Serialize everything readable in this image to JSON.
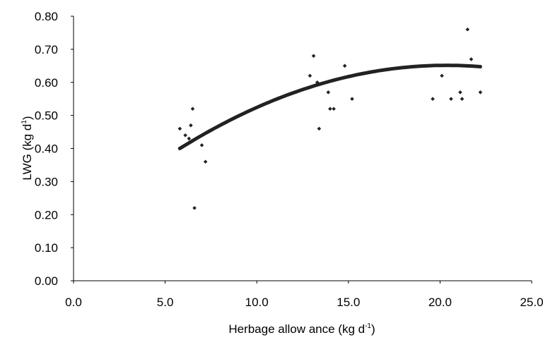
{
  "chart_data": {
    "type": "scatter",
    "xlabel": "Herbage allow ance (kg d",
    "xlabel_sup": "-1",
    "xlabel_end": ")",
    "ylabel": "LWG (kg d",
    "ylabel_sup": "1",
    "ylabel_end": ")",
    "xlim": [
      0,
      25
    ],
    "ylim": [
      0,
      0.8
    ],
    "x_ticks": [
      0,
      5,
      10,
      15,
      20,
      25
    ],
    "x_tick_labels": [
      "0.0",
      "5.0",
      "10.0",
      "15.0",
      "20.0",
      "25.0"
    ],
    "y_ticks": [
      0,
      0.1,
      0.2,
      0.3,
      0.4,
      0.5,
      0.6,
      0.7,
      0.8
    ],
    "y_tick_labels": [
      "0.00",
      "0.10",
      "0.20",
      "0.30",
      "0.40",
      "0.50",
      "0.60",
      "0.70",
      "0.80"
    ],
    "grid": false,
    "legend": "none",
    "points": [
      {
        "x": 5.8,
        "y": 0.46
      },
      {
        "x": 6.1,
        "y": 0.44
      },
      {
        "x": 6.3,
        "y": 0.43
      },
      {
        "x": 6.4,
        "y": 0.47
      },
      {
        "x": 6.5,
        "y": 0.52
      },
      {
        "x": 6.6,
        "y": 0.22
      },
      {
        "x": 7.0,
        "y": 0.41
      },
      {
        "x": 7.2,
        "y": 0.36
      },
      {
        "x": 12.9,
        "y": 0.62
      },
      {
        "x": 13.1,
        "y": 0.68
      },
      {
        "x": 13.3,
        "y": 0.6
      },
      {
        "x": 13.4,
        "y": 0.46
      },
      {
        "x": 13.9,
        "y": 0.57
      },
      {
        "x": 14.0,
        "y": 0.52
      },
      {
        "x": 14.2,
        "y": 0.52
      },
      {
        "x": 14.8,
        "y": 0.65
      },
      {
        "x": 15.2,
        "y": 0.55
      },
      {
        "x": 19.6,
        "y": 0.55
      },
      {
        "x": 20.1,
        "y": 0.62
      },
      {
        "x": 20.6,
        "y": 0.55
      },
      {
        "x": 21.1,
        "y": 0.57
      },
      {
        "x": 21.2,
        "y": 0.55
      },
      {
        "x": 21.5,
        "y": 0.76
      },
      {
        "x": 21.7,
        "y": 0.67
      },
      {
        "x": 22.2,
        "y": 0.57
      }
    ],
    "trendline": {
      "type": "quadratic",
      "x_range": [
        5.8,
        22.2
      ],
      "coefficients": {
        "a": -0.001186,
        "b": 0.0483,
        "c": 0.1597
      }
    },
    "colors": {
      "marks": "#222222",
      "axis": "#000000"
    }
  }
}
